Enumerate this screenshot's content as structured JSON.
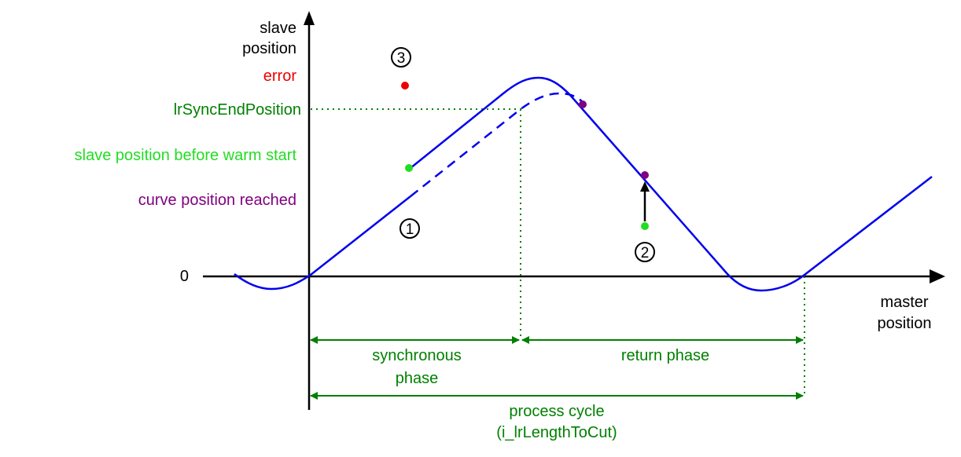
{
  "axes": {
    "y_label_line1": "slave",
    "y_label_line2": "position",
    "x_label_line1": "master",
    "x_label_line2": "position",
    "zero": "0"
  },
  "labels": {
    "error": "error",
    "sync_end": "lrSyncEndPosition",
    "slave_before": "slave position before warm start",
    "curve_reached": "curve position reached"
  },
  "markers": {
    "m1": "1",
    "m2": "2",
    "m3": "3"
  },
  "phases": {
    "sync_line1": "synchronous",
    "sync_line2": "phase",
    "return": "return phase",
    "cycle_line1": "process cycle",
    "cycle_line2": "(i_lrLengthToCut)"
  },
  "colors": {
    "curve": "#0000ee",
    "green_dark": "#008000",
    "green_light": "#22dd22",
    "purple": "#800080",
    "red": "#ee0000",
    "axis": "#000000"
  }
}
